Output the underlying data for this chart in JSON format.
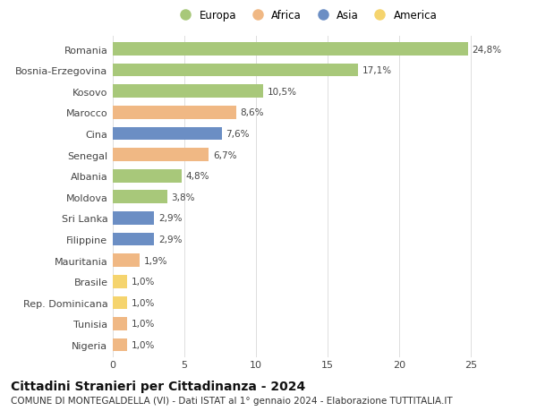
{
  "countries": [
    "Romania",
    "Bosnia-Erzegovina",
    "Kosovo",
    "Marocco",
    "Cina",
    "Senegal",
    "Albania",
    "Moldova",
    "Sri Lanka",
    "Filippine",
    "Mauritania",
    "Brasile",
    "Rep. Dominicana",
    "Tunisia",
    "Nigeria"
  ],
  "values": [
    24.8,
    17.1,
    10.5,
    8.6,
    7.6,
    6.7,
    4.8,
    3.8,
    2.9,
    2.9,
    1.9,
    1.0,
    1.0,
    1.0,
    1.0
  ],
  "labels": [
    "24,8%",
    "17,1%",
    "10,5%",
    "8,6%",
    "7,6%",
    "6,7%",
    "4,8%",
    "3,8%",
    "2,9%",
    "2,9%",
    "1,9%",
    "1,0%",
    "1,0%",
    "1,0%",
    "1,0%"
  ],
  "continents": [
    "Europa",
    "Europa",
    "Europa",
    "Africa",
    "Asia",
    "Africa",
    "Europa",
    "Europa",
    "Asia",
    "Asia",
    "Africa",
    "America",
    "America",
    "Africa",
    "Africa"
  ],
  "continent_colors": {
    "Europa": "#a8c87a",
    "Africa": "#f0b884",
    "Asia": "#6b8ec4",
    "America": "#f5d46e"
  },
  "legend_order": [
    "Europa",
    "Africa",
    "Asia",
    "America"
  ],
  "xlim": [
    0,
    27
  ],
  "xticks": [
    0,
    5,
    10,
    15,
    20,
    25
  ],
  "title": "Cittadini Stranieri per Cittadinanza - 2024",
  "subtitle": "COMUNE DI MONTEGALDELLA (VI) - Dati ISTAT al 1° gennaio 2024 - Elaborazione TUTTITALIA.IT",
  "bg_color": "#ffffff",
  "grid_color": "#dddddd",
  "bar_height": 0.62,
  "title_fontsize": 10,
  "subtitle_fontsize": 7.5,
  "label_fontsize": 7.5,
  "tick_fontsize": 8,
  "legend_fontsize": 8.5
}
